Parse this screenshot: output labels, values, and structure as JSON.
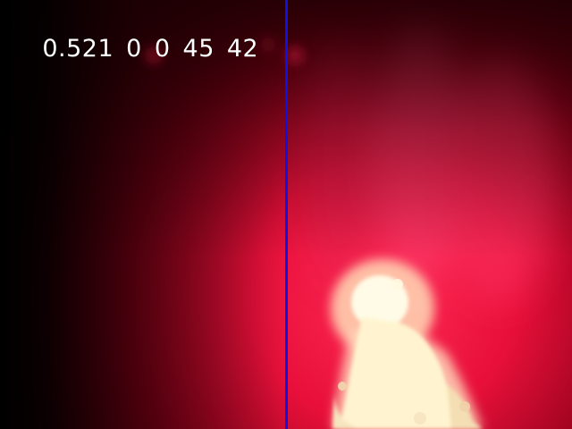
{
  "readout": {
    "values": [
      "0.521",
      "0",
      "0",
      "45",
      "42"
    ]
  },
  "colors": {
    "cursor_line": "#1010e0",
    "readout_text": "#ffffff",
    "background_dark": "#1a0002",
    "glow_red": "#ff1a46",
    "flame_core": "#fff6d0"
  },
  "scene": {
    "description_icon": "flame-glow-icon"
  }
}
